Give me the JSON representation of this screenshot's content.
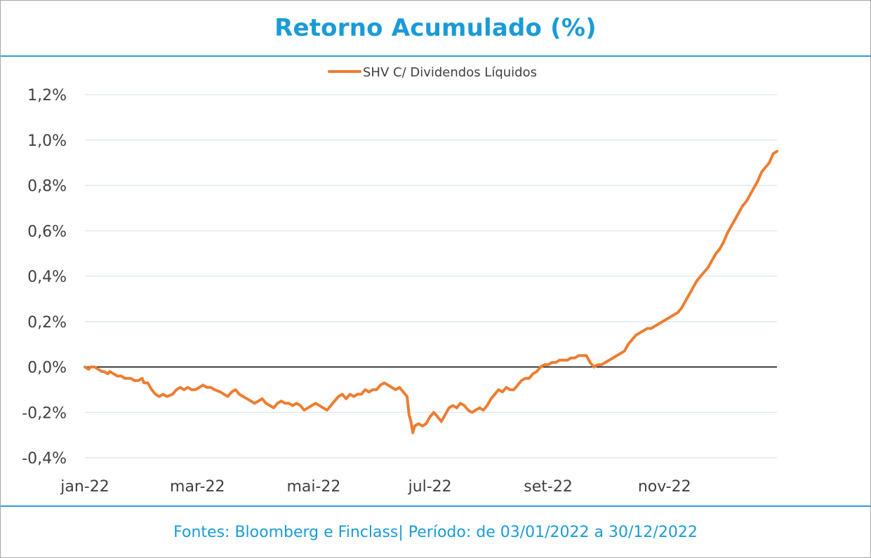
{
  "header": {
    "title": "Retorno Acumulado (%)"
  },
  "footer": {
    "text": "Fontes: Bloomberg e Finclass|  Período: de 03/01/2022 a 30/12/2022"
  },
  "colors": {
    "accent": "#1a9bd7",
    "series": "#ed7d31",
    "zero_line": "#000000",
    "grid": "#d9e7ee"
  },
  "chart_data": {
    "type": "line",
    "title": "Retorno Acumulado (%)",
    "xlabel": "",
    "ylabel": "",
    "ylim": [
      -0.4,
      1.2
    ],
    "grid": true,
    "legend_position": "top-center",
    "y_ticks": [
      -0.4,
      -0.2,
      0.0,
      0.2,
      0.4,
      0.6,
      0.8,
      1.0,
      1.2
    ],
    "y_tick_labels": [
      "-0,4%",
      "-0,2%",
      "0,0%",
      "0,2%",
      "0,4%",
      "0,6%",
      "0,8%",
      "1,0%",
      "1,2%"
    ],
    "x_tick_labels": [
      {
        "label": "jan-22",
        "day": 0
      },
      {
        "label": "mar-22",
        "day": 59
      },
      {
        "label": "mai-22",
        "day": 120
      },
      {
        "label": "jul-22",
        "day": 181
      },
      {
        "label": "set-22",
        "day": 243
      },
      {
        "label": "nov-22",
        "day": 304
      }
    ],
    "x_range_days": [
      0,
      363
    ],
    "series": [
      {
        "name": "SHV C/ Dividendos Líquidos",
        "points": [
          [
            0,
            0.0
          ],
          [
            2,
            -0.01
          ],
          [
            3,
            0.0
          ],
          [
            5,
            0.0
          ],
          [
            7,
            -0.01
          ],
          [
            9,
            -0.02
          ],
          [
            10,
            -0.02
          ],
          [
            12,
            -0.03
          ],
          [
            13,
            -0.02
          ],
          [
            15,
            -0.03
          ],
          [
            17,
            -0.04
          ],
          [
            19,
            -0.04
          ],
          [
            21,
            -0.05
          ],
          [
            24,
            -0.05
          ],
          [
            26,
            -0.06
          ],
          [
            28,
            -0.06
          ],
          [
            30,
            -0.05
          ],
          [
            31,
            -0.07
          ],
          [
            33,
            -0.07
          ],
          [
            35,
            -0.1
          ],
          [
            37,
            -0.12
          ],
          [
            39,
            -0.13
          ],
          [
            41,
            -0.12
          ],
          [
            43,
            -0.13
          ],
          [
            46,
            -0.12
          ],
          [
            48,
            -0.1
          ],
          [
            50,
            -0.09
          ],
          [
            52,
            -0.1
          ],
          [
            54,
            -0.09
          ],
          [
            56,
            -0.1
          ],
          [
            58,
            -0.1
          ],
          [
            60,
            -0.09
          ],
          [
            62,
            -0.08
          ],
          [
            64,
            -0.09
          ],
          [
            66,
            -0.09
          ],
          [
            68,
            -0.1
          ],
          [
            71,
            -0.11
          ],
          [
            73,
            -0.12
          ],
          [
            75,
            -0.13
          ],
          [
            77,
            -0.11
          ],
          [
            79,
            -0.1
          ],
          [
            81,
            -0.12
          ],
          [
            83,
            -0.13
          ],
          [
            85,
            -0.14
          ],
          [
            87,
            -0.15
          ],
          [
            89,
            -0.16
          ],
          [
            91,
            -0.15
          ],
          [
            93,
            -0.14
          ],
          [
            95,
            -0.16
          ],
          [
            97,
            -0.17
          ],
          [
            99,
            -0.18
          ],
          [
            101,
            -0.16
          ],
          [
            103,
            -0.15
          ],
          [
            105,
            -0.16
          ],
          [
            107,
            -0.16
          ],
          [
            109,
            -0.17
          ],
          [
            111,
            -0.16
          ],
          [
            113,
            -0.17
          ],
          [
            115,
            -0.19
          ],
          [
            117,
            -0.18
          ],
          [
            119,
            -0.17
          ],
          [
            121,
            -0.16
          ],
          [
            123,
            -0.17
          ],
          [
            125,
            -0.18
          ],
          [
            127,
            -0.19
          ],
          [
            129,
            -0.17
          ],
          [
            131,
            -0.15
          ],
          [
            133,
            -0.13
          ],
          [
            135,
            -0.12
          ],
          [
            137,
            -0.14
          ],
          [
            139,
            -0.12
          ],
          [
            141,
            -0.13
          ],
          [
            143,
            -0.12
          ],
          [
            145,
            -0.12
          ],
          [
            147,
            -0.1
          ],
          [
            149,
            -0.11
          ],
          [
            151,
            -0.1
          ],
          [
            153,
            -0.1
          ],
          [
            155,
            -0.08
          ],
          [
            157,
            -0.07
          ],
          [
            159,
            -0.08
          ],
          [
            161,
            -0.09
          ],
          [
            163,
            -0.1
          ],
          [
            165,
            -0.09
          ],
          [
            167,
            -0.11
          ],
          [
            169,
            -0.13
          ],
          [
            170,
            -0.21
          ],
          [
            171,
            -0.24
          ],
          [
            172,
            -0.29
          ],
          [
            173,
            -0.26
          ],
          [
            175,
            -0.25
          ],
          [
            177,
            -0.26
          ],
          [
            179,
            -0.25
          ],
          [
            181,
            -0.22
          ],
          [
            183,
            -0.2
          ],
          [
            185,
            -0.22
          ],
          [
            187,
            -0.24
          ],
          [
            189,
            -0.21
          ],
          [
            191,
            -0.18
          ],
          [
            193,
            -0.17
          ],
          [
            195,
            -0.18
          ],
          [
            197,
            -0.16
          ],
          [
            199,
            -0.17
          ],
          [
            201,
            -0.19
          ],
          [
            203,
            -0.2
          ],
          [
            205,
            -0.19
          ],
          [
            207,
            -0.18
          ],
          [
            209,
            -0.19
          ],
          [
            211,
            -0.17
          ],
          [
            213,
            -0.14
          ],
          [
            215,
            -0.12
          ],
          [
            217,
            -0.1
          ],
          [
            219,
            -0.11
          ],
          [
            221,
            -0.09
          ],
          [
            223,
            -0.1
          ],
          [
            225,
            -0.1
          ],
          [
            227,
            -0.08
          ],
          [
            229,
            -0.06
          ],
          [
            231,
            -0.05
          ],
          [
            233,
            -0.05
          ],
          [
            235,
            -0.03
          ],
          [
            237,
            -0.02
          ],
          [
            239,
            0.0
          ],
          [
            241,
            0.01
          ],
          [
            243,
            0.01
          ],
          [
            245,
            0.02
          ],
          [
            247,
            0.02
          ],
          [
            249,
            0.03
          ],
          [
            251,
            0.03
          ],
          [
            253,
            0.03
          ],
          [
            255,
            0.04
          ],
          [
            257,
            0.04
          ],
          [
            259,
            0.05
          ],
          [
            261,
            0.05
          ],
          [
            263,
            0.05
          ],
          [
            265,
            0.02
          ],
          [
            267,
            0.0
          ],
          [
            269,
            0.01
          ],
          [
            271,
            0.01
          ],
          [
            273,
            0.02
          ],
          [
            275,
            0.03
          ],
          [
            277,
            0.04
          ],
          [
            279,
            0.05
          ],
          [
            281,
            0.06
          ],
          [
            283,
            0.07
          ],
          [
            285,
            0.1
          ],
          [
            287,
            0.12
          ],
          [
            289,
            0.14
          ],
          [
            291,
            0.15
          ],
          [
            293,
            0.16
          ],
          [
            295,
            0.17
          ],
          [
            297,
            0.17
          ],
          [
            299,
            0.18
          ],
          [
            301,
            0.19
          ],
          [
            303,
            0.2
          ],
          [
            305,
            0.21
          ],
          [
            307,
            0.22
          ],
          [
            309,
            0.23
          ],
          [
            311,
            0.24
          ],
          [
            313,
            0.26
          ],
          [
            315,
            0.29
          ],
          [
            317,
            0.32
          ],
          [
            319,
            0.35
          ],
          [
            321,
            0.38
          ],
          [
            323,
            0.4
          ],
          [
            325,
            0.42
          ],
          [
            327,
            0.44
          ],
          [
            329,
            0.47
          ],
          [
            331,
            0.5
          ],
          [
            333,
            0.52
          ],
          [
            335,
            0.55
          ],
          [
            337,
            0.59
          ],
          [
            339,
            0.62
          ],
          [
            341,
            0.65
          ],
          [
            343,
            0.68
          ],
          [
            345,
            0.71
          ],
          [
            347,
            0.73
          ],
          [
            349,
            0.76
          ],
          [
            351,
            0.79
          ],
          [
            353,
            0.82
          ],
          [
            355,
            0.86
          ],
          [
            357,
            0.88
          ],
          [
            359,
            0.9
          ],
          [
            361,
            0.94
          ],
          [
            363,
            0.95
          ]
        ]
      }
    ]
  }
}
